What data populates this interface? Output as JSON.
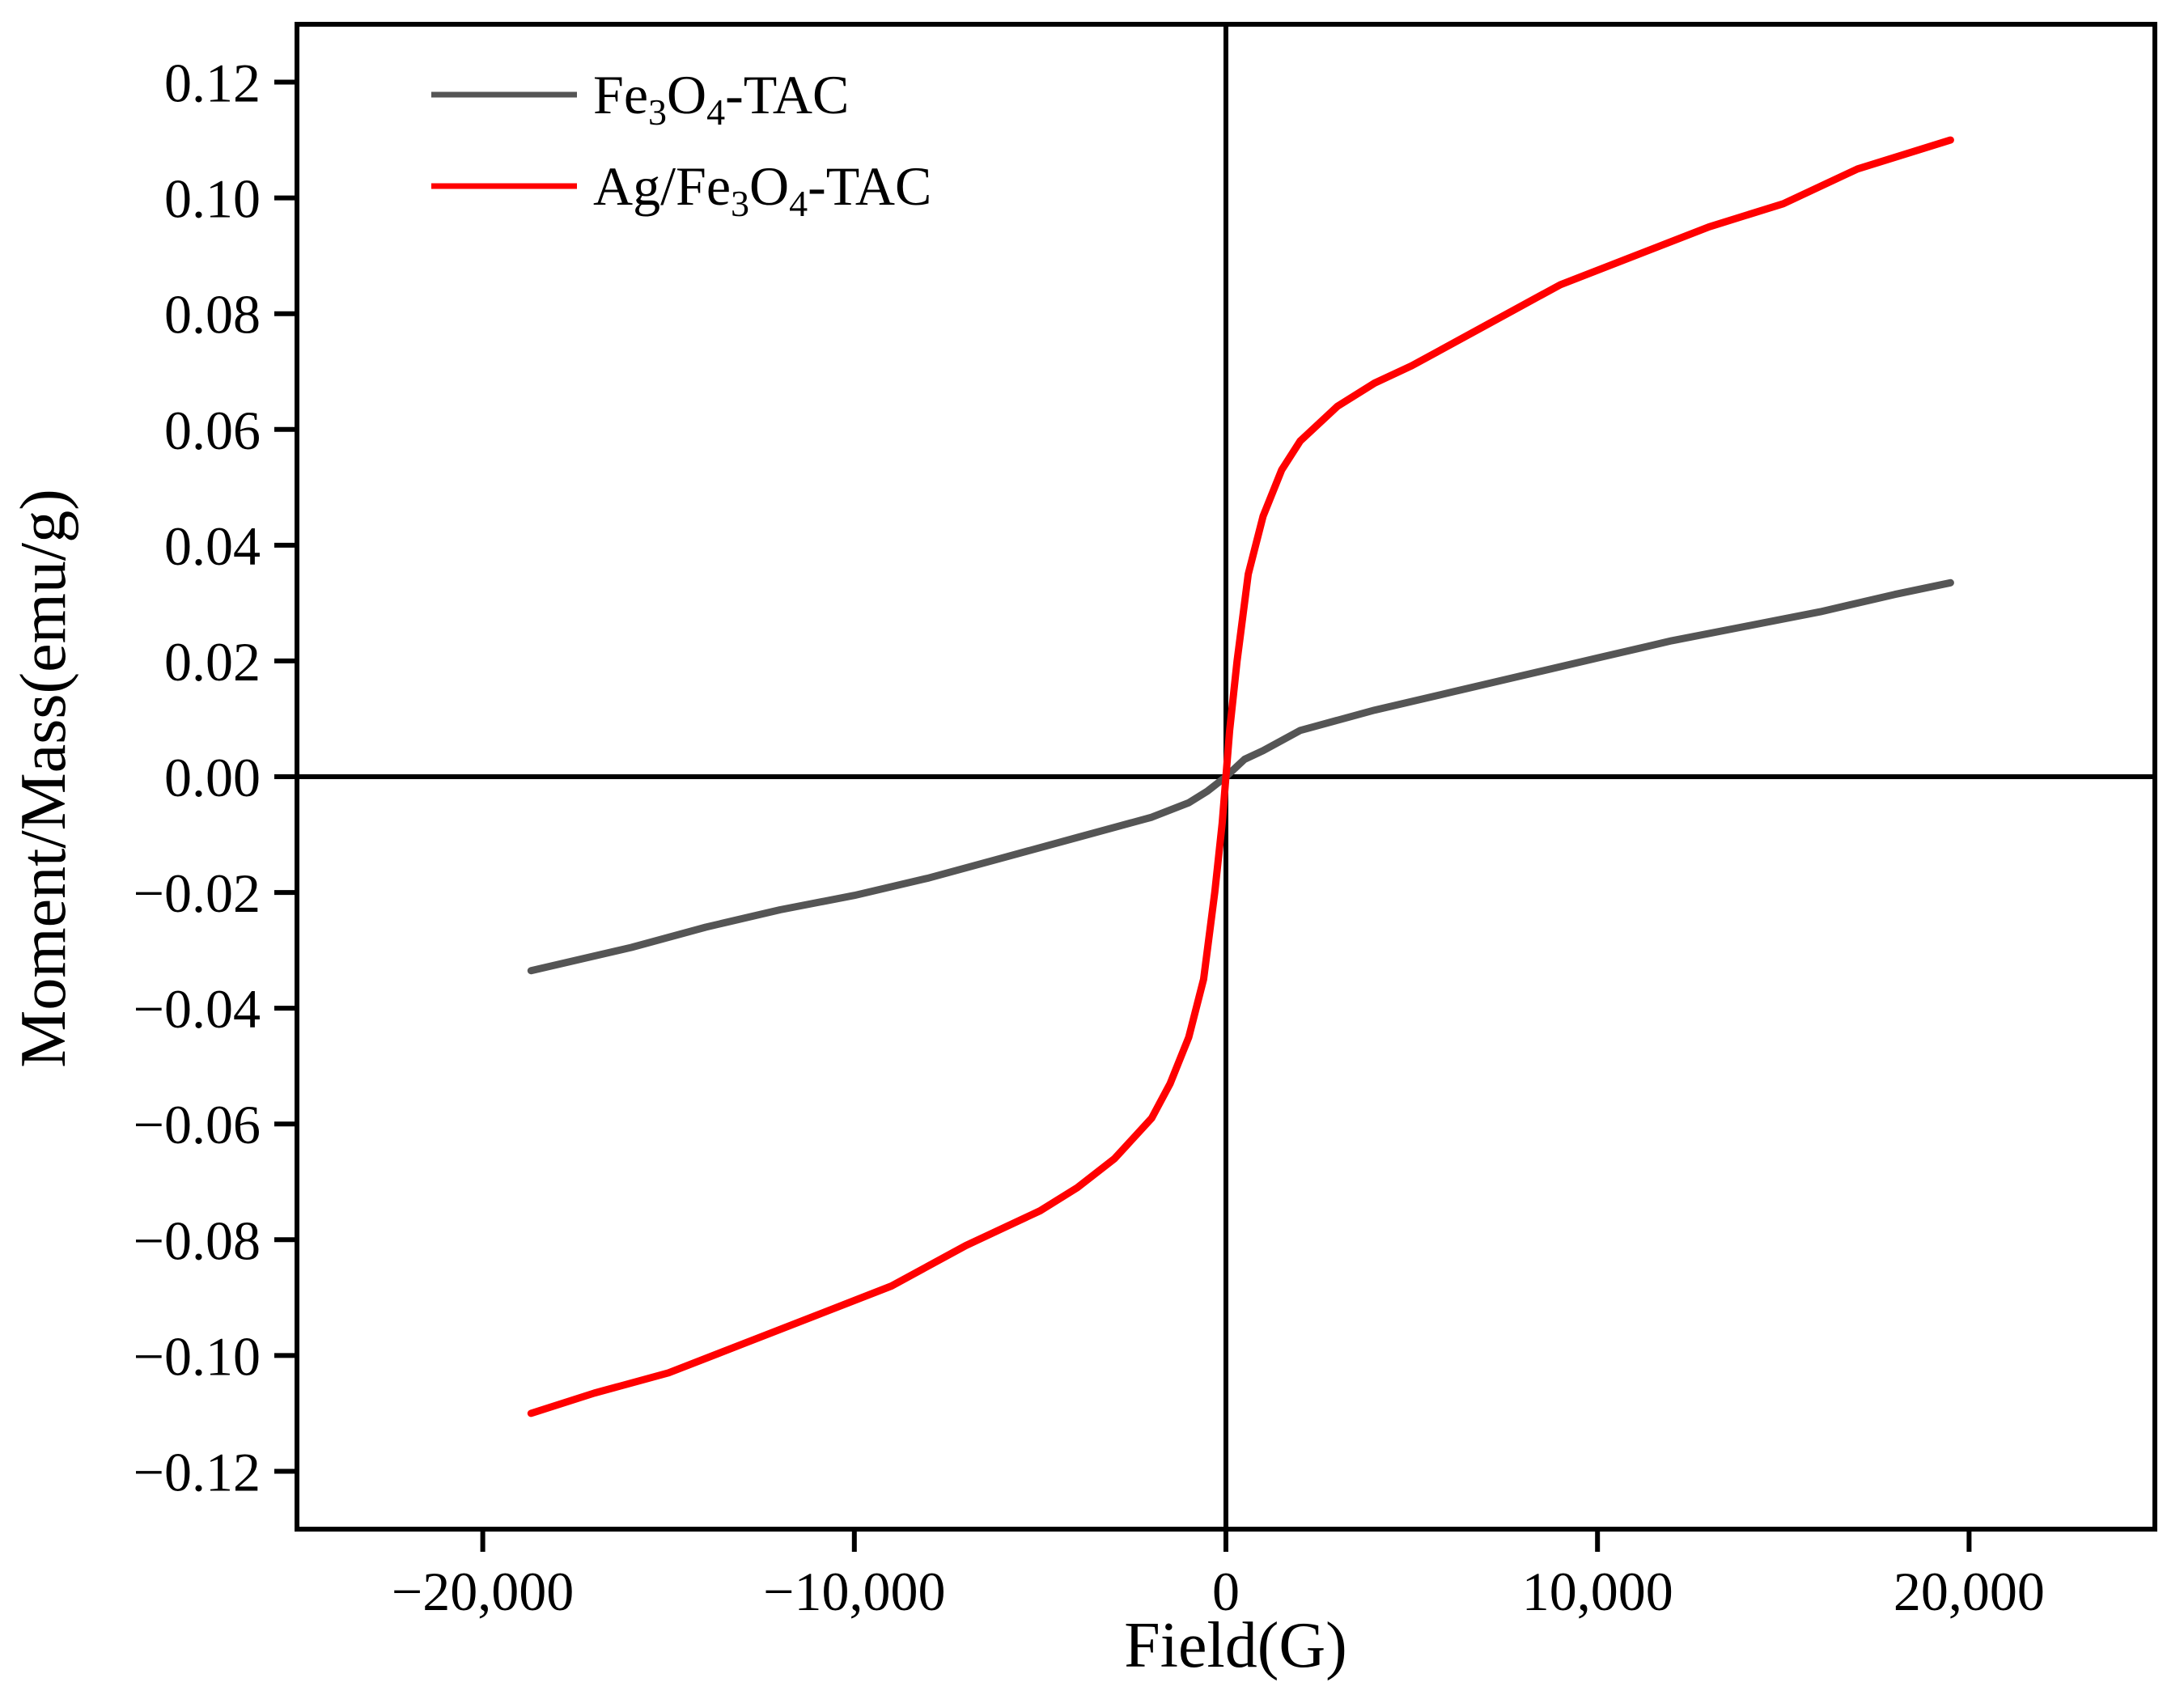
{
  "chart_data": {
    "type": "line",
    "title": "",
    "xlabel": "Field(G)",
    "ylabel": "Moment/Mass(emu/g)",
    "xlim": [
      -25000,
      25000
    ],
    "ylim": [
      -0.13,
      0.13
    ],
    "xticks": [
      -20000,
      -10000,
      0,
      10000,
      20000
    ],
    "xtick_labels": [
      "−20,000",
      "−10,000",
      "0",
      "10,000",
      "20,000"
    ],
    "yticks": [
      0.12,
      0.1,
      0.08,
      0.06,
      0.04,
      0.02,
      0.0,
      -0.02,
      -0.04,
      -0.06,
      -0.08,
      -0.1,
      -0.12
    ],
    "ytick_labels": [
      "0.12",
      "0.10",
      "0.08",
      "0.06",
      "0.04",
      "0.02",
      "0.00",
      "−0.02",
      "−0.04",
      "−0.06",
      "−0.08",
      "−0.10",
      "−0.12"
    ],
    "grid": false,
    "zero_lines": true,
    "legend_position": "top-left",
    "series": [
      {
        "name": "Fe3O4-TAC",
        "legend_parts": [
          "Fe",
          "3",
          "O",
          "4",
          "-TAC"
        ],
        "color": "#555555",
        "x": [
          -18700,
          -16000,
          -14000,
          -12000,
          -10000,
          -8000,
          -6000,
          -4000,
          -2000,
          -1000,
          -500,
          0,
          500,
          1000,
          2000,
          4000,
          6000,
          8000,
          10000,
          12000,
          14000,
          16000,
          18000,
          19500
        ],
        "y": [
          -0.0335,
          -0.0295,
          -0.026,
          -0.023,
          -0.0205,
          -0.0175,
          -0.014,
          -0.0105,
          -0.007,
          -0.0045,
          -0.0025,
          0.0,
          0.003,
          0.0045,
          0.008,
          0.0115,
          0.0145,
          0.0175,
          0.0205,
          0.0235,
          0.026,
          0.0285,
          0.0315,
          0.0335
        ]
      },
      {
        "name": "Ag/Fe3O4-TAC",
        "legend_parts": [
          "Ag/Fe",
          "3",
          "O",
          "4",
          "-TAC"
        ],
        "color": "#ff0000",
        "x": [
          -18700,
          -17000,
          -15000,
          -13000,
          -11000,
          -9000,
          -7000,
          -5000,
          -4000,
          -3000,
          -2000,
          -1500,
          -1000,
          -600,
          -300,
          -100,
          0,
          100,
          300,
          600,
          1000,
          1500,
          2000,
          3000,
          4000,
          5000,
          7000,
          9000,
          11000,
          13000,
          15000,
          17000,
          19500
        ],
        "y": [
          -0.11,
          -0.1065,
          -0.103,
          -0.098,
          -0.093,
          -0.088,
          -0.081,
          -0.075,
          -0.071,
          -0.066,
          -0.059,
          -0.053,
          -0.045,
          -0.035,
          -0.02,
          -0.008,
          0.0,
          0.008,
          0.02,
          0.035,
          0.045,
          0.053,
          0.058,
          0.064,
          0.068,
          0.071,
          0.078,
          0.085,
          0.09,
          0.095,
          0.099,
          0.105,
          0.11
        ]
      }
    ]
  }
}
